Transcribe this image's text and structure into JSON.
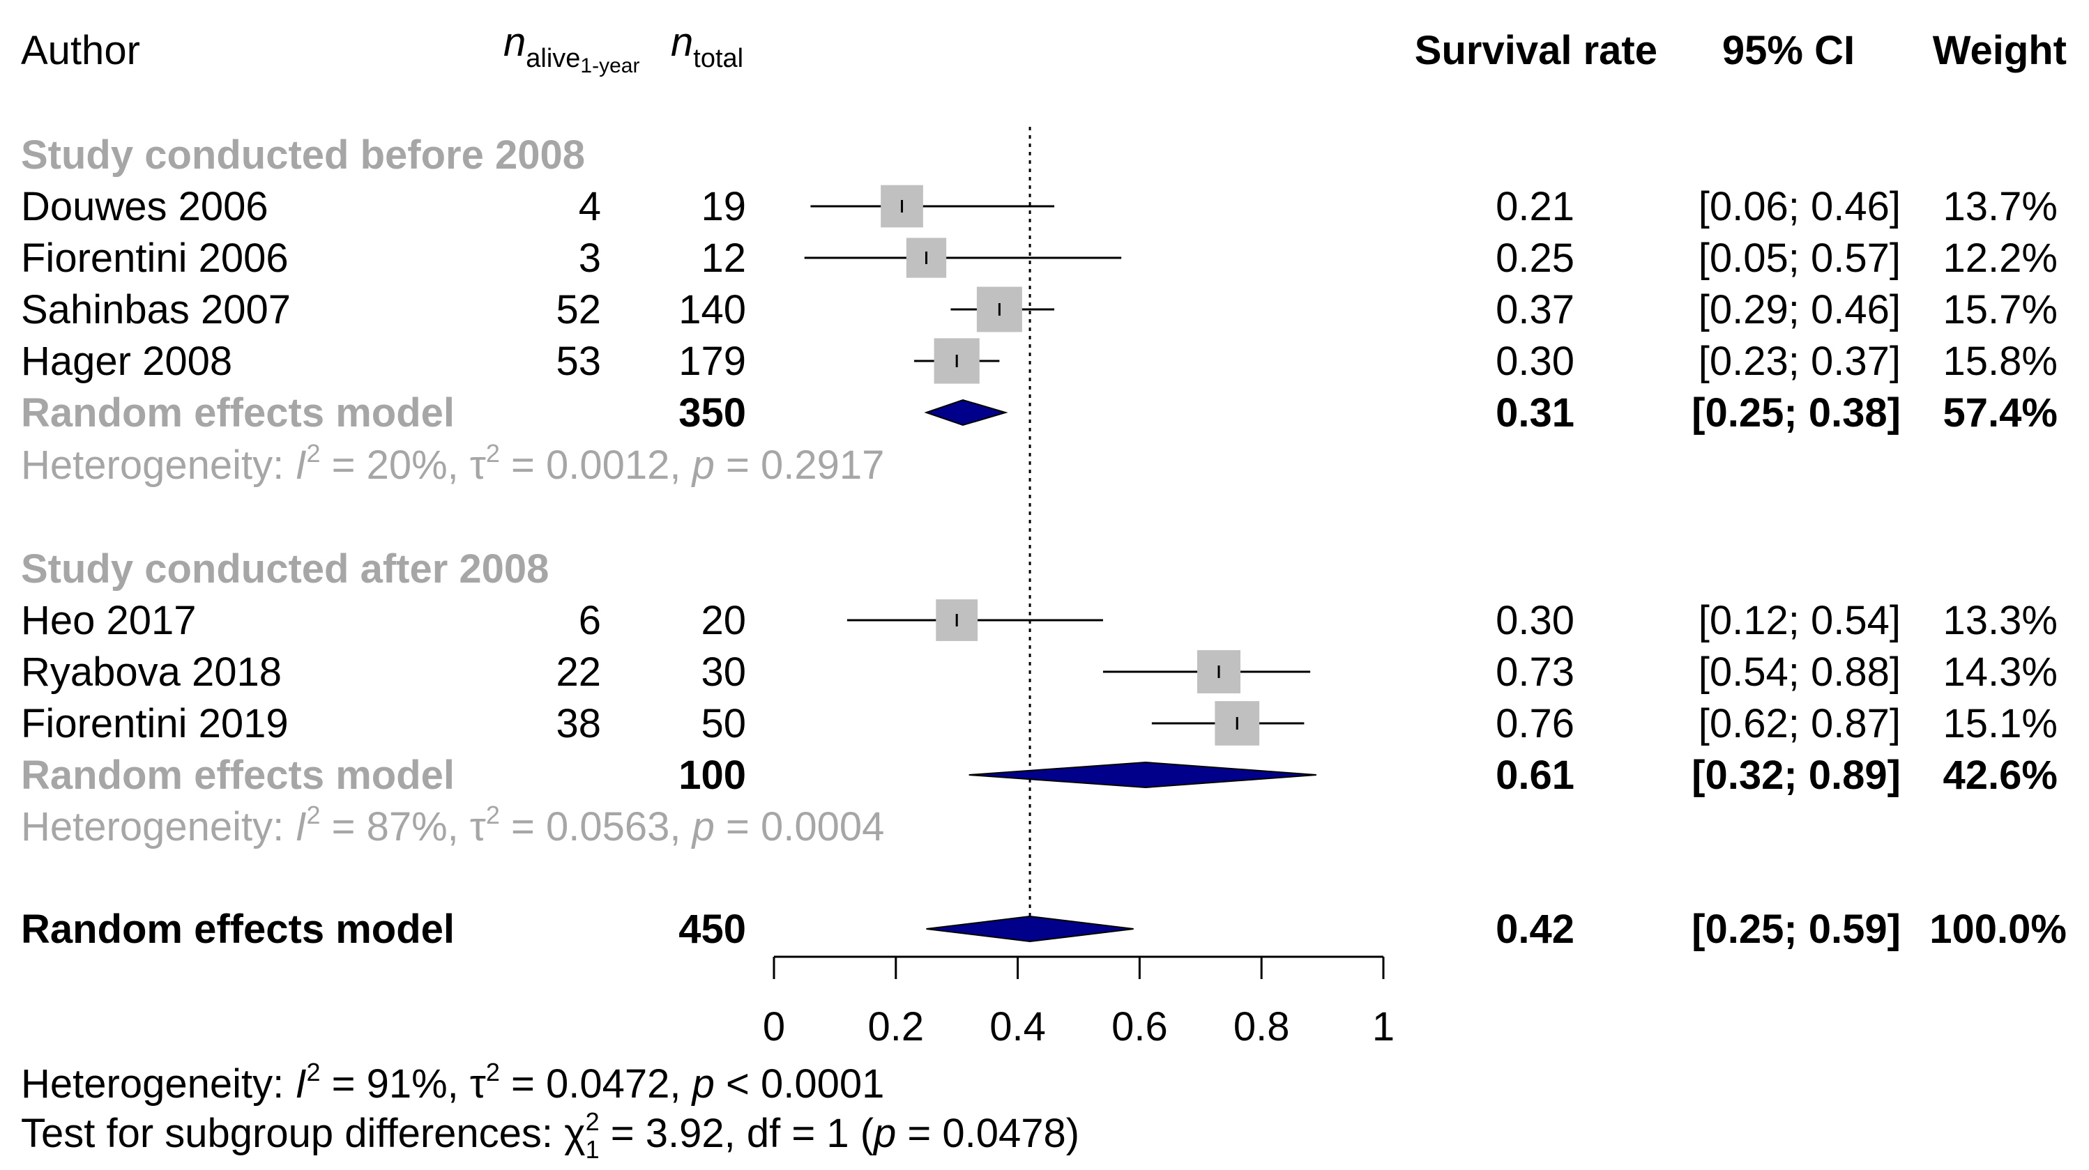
{
  "chart_data": {
    "type": "forest",
    "columns": {
      "author": "Author",
      "n_events_symbol": "n",
      "n_events_subscript": "alive",
      "n_events_subsubscript": "1-year",
      "n_total_symbol": "n",
      "n_total_subscript": "total",
      "estimate": "Survival rate",
      "ci": "95% CI",
      "weight": "Weight"
    },
    "subgroups": [
      {
        "label": "Study conducted before 2008",
        "studies": [
          {
            "author": "Douwes 2006",
            "events": "4",
            "total": "19",
            "est": 0.21,
            "lo": 0.06,
            "hi": 0.46,
            "est_text": "0.21",
            "ci_text": "[0.06; 0.46]",
            "weight_text": "13.7%",
            "weight": 13.7
          },
          {
            "author": "Fiorentini 2006",
            "events": "3",
            "total": "12",
            "est": 0.25,
            "lo": 0.05,
            "hi": 0.57,
            "est_text": "0.25",
            "ci_text": "[0.05; 0.57]",
            "weight_text": "12.2%",
            "weight": 12.2
          },
          {
            "author": "Sahinbas 2007",
            "events": "52",
            "total": "140",
            "est": 0.37,
            "lo": 0.29,
            "hi": 0.46,
            "est_text": "0.37",
            "ci_text": "[0.29; 0.46]",
            "weight_text": "15.7%",
            "weight": 15.7
          },
          {
            "author": "Hager 2008",
            "events": "53",
            "total": "179",
            "est": 0.3,
            "lo": 0.23,
            "hi": 0.37,
            "est_text": "0.30",
            "ci_text": "[0.23; 0.37]",
            "weight_text": "15.8%",
            "weight": 15.8
          }
        ],
        "model": {
          "label": "Random effects model",
          "total": "350",
          "est": 0.31,
          "lo": 0.25,
          "hi": 0.38,
          "est_text": "0.31",
          "ci_text": "[0.25; 0.38]",
          "weight_text": "57.4%"
        },
        "heterogeneity": {
          "prefix": "Heterogeneity: ",
          "i2": " = 20%, ",
          "tau2": " = 0.0012, ",
          "p": " = 0.2917"
        }
      },
      {
        "label": "Study conducted after 2008",
        "studies": [
          {
            "author": "Heo 2017",
            "events": "6",
            "total": "20",
            "est": 0.3,
            "lo": 0.12,
            "hi": 0.54,
            "est_text": "0.30",
            "ci_text": "[0.12; 0.54]",
            "weight_text": "13.3%",
            "weight": 13.3
          },
          {
            "author": "Ryabova 2018",
            "events": "22",
            "total": "30",
            "est": 0.73,
            "lo": 0.54,
            "hi": 0.88,
            "est_text": "0.73",
            "ci_text": "[0.54; 0.88]",
            "weight_text": "14.3%",
            "weight": 14.3
          },
          {
            "author": "Fiorentini 2019",
            "events": "38",
            "total": "50",
            "est": 0.76,
            "lo": 0.62,
            "hi": 0.87,
            "est_text": "0.76",
            "ci_text": "[0.62; 0.87]",
            "weight_text": "15.1%",
            "weight": 15.1
          }
        ],
        "model": {
          "label": "Random effects model",
          "total": "100",
          "est": 0.61,
          "lo": 0.32,
          "hi": 0.89,
          "est_text": "0.61",
          "ci_text": "[0.32; 0.89]",
          "weight_text": "42.6%"
        },
        "heterogeneity": {
          "prefix": "Heterogeneity: ",
          "i2": " = 87%, ",
          "tau2": " = 0.0563, ",
          "p": " = 0.0004"
        }
      }
    ],
    "overall": {
      "label": "Random effects model",
      "total": "450",
      "est": 0.42,
      "lo": 0.25,
      "hi": 0.59,
      "est_text": "0.42",
      "ci_text": "[0.25; 0.59]",
      "weight_text": "100.0%",
      "heterogeneity": {
        "prefix": "Heterogeneity: ",
        "i2": " = 91%, ",
        "tau2": " = 0.0472, ",
        "p": " < 0.0001"
      },
      "subgroup_test": {
        "prefix": "Test for subgroup differences: ",
        "chi_sup": "2",
        "chi_sub": "1",
        "stat": " = 3.92, df = 1 (",
        "p_text": " = 0.0478)"
      }
    },
    "x_axis": {
      "min": 0,
      "max": 1,
      "ticks": [
        0,
        0.2,
        0.4,
        0.6,
        0.8,
        1
      ],
      "tick_labels": [
        "0",
        "0.2",
        "0.4",
        "0.6",
        "0.8",
        "1"
      ],
      "reference_line": 0.42
    },
    "symbols": {
      "I": "I",
      "tau": "τ",
      "p": "p",
      "chi": "χ",
      "sup2": "2"
    },
    "colors": {
      "square": "#c0c0c0",
      "diamond": "#00008b",
      "subgroup_text": "#a6a6a6",
      "text": "#000000"
    }
  }
}
